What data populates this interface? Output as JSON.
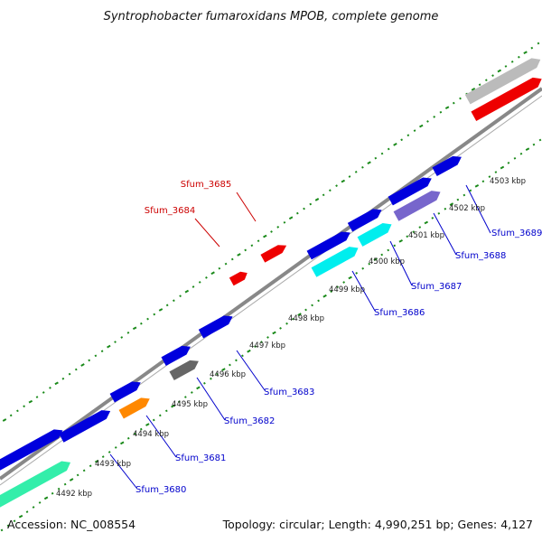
{
  "title": "Syntrophobacter fumaroxidans MPOB, complete genome",
  "accession_text": "Accession: NC_008554",
  "summary_text": "Topology: circular; Length: 4,990,251 bp; Genes: 4,127",
  "colors": {
    "backbone": "#888888",
    "ticks": "#1a8a1a",
    "upper_label": "#cc0000",
    "lower_label": "#0000cc",
    "kbp_text": "#222222"
  },
  "kbp_labels": [
    "4492 kbp",
    "4493 kbp",
    "4494 kbp",
    "4495 kbp",
    "4496 kbp",
    "4497 kbp",
    "4498 kbp",
    "4499 kbp",
    "4500 kbp",
    "4501 kbp",
    "4502 kbp",
    "4503 kbp"
  ],
  "upper_gene_labels": [
    "Sfum_3685",
    "Sfum_3684"
  ],
  "lower_gene_labels": [
    "Sfum_3689",
    "Sfum_3688",
    "Sfum_3687",
    "Sfum_3686",
    "Sfum_3683",
    "Sfum_3682",
    "Sfum_3681",
    "Sfum_3680"
  ],
  "feature_colors": {
    "cds": "#0000dd",
    "cds_label_red": "#ee0000",
    "cyan": "#00eeee",
    "violet": "#7766cc",
    "gray_dark": "#666666",
    "orange": "#ff8800",
    "aquamarine": "#33eeaa",
    "gray_light": "#bbbbbb",
    "red_big": "#ee0000"
  }
}
